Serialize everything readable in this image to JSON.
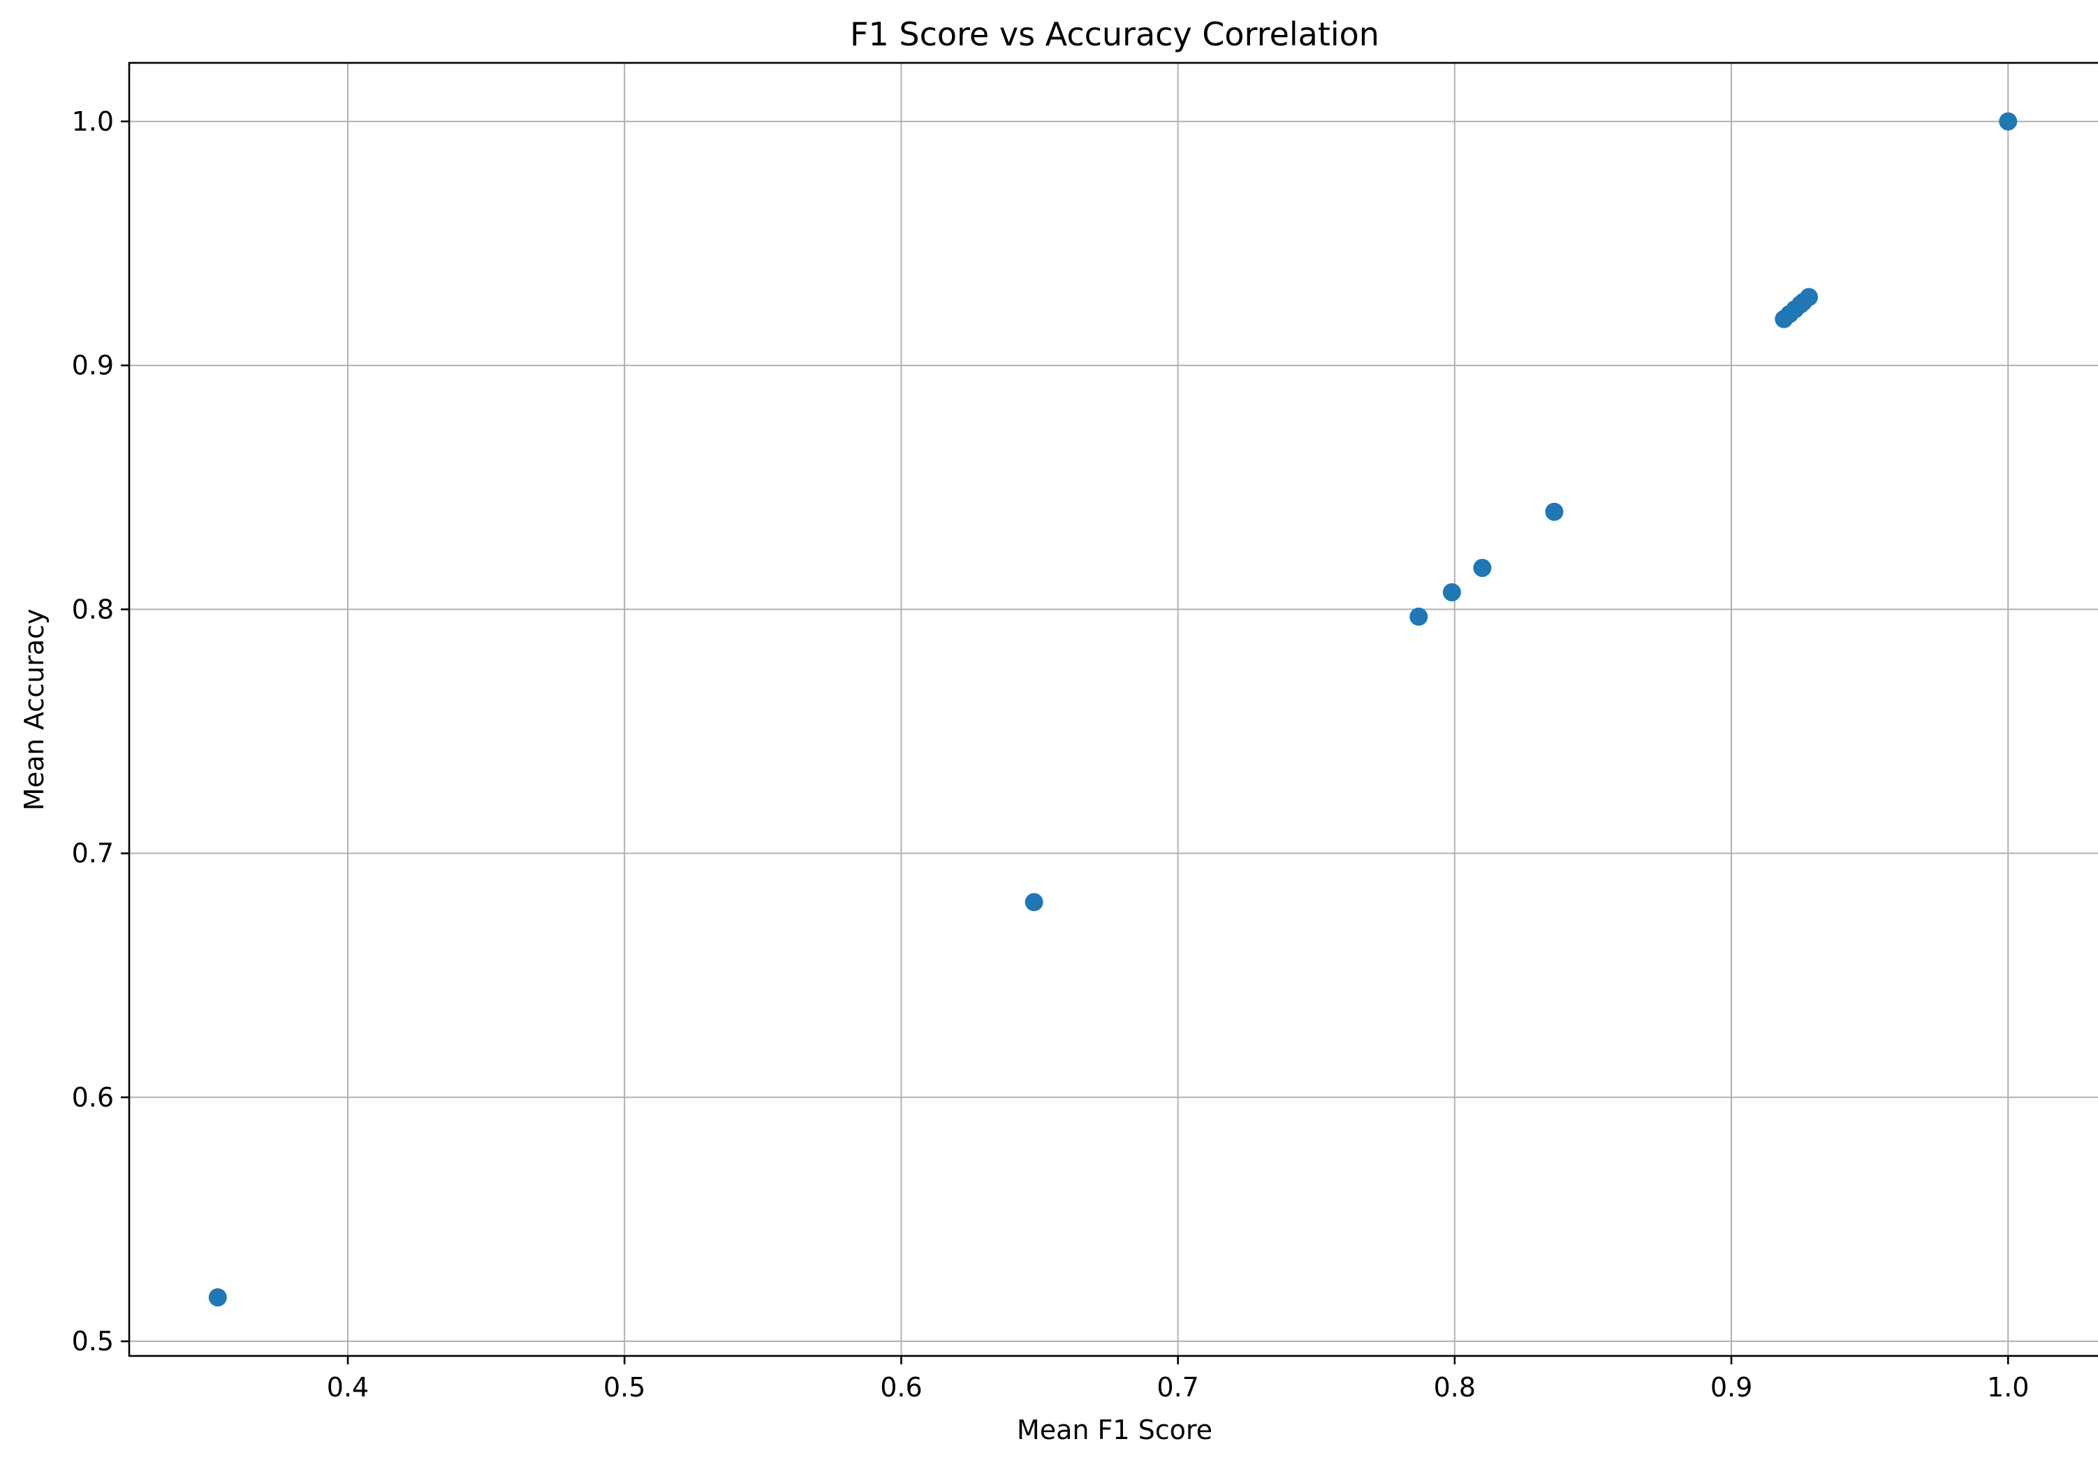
{
  "chart_data": {
    "type": "scatter",
    "title": "F1 Score vs Accuracy Correlation",
    "xlabel": "Mean F1 Score",
    "ylabel": "Mean Accuracy",
    "xlim": [
      0.321,
      1.033
    ],
    "ylim": [
      0.494,
      1.024
    ],
    "xticks": [
      0.4,
      0.5,
      0.6,
      0.7,
      0.8,
      0.9,
      1.0
    ],
    "xtick_labels": [
      "0.4",
      "0.5",
      "0.6",
      "0.7",
      "0.8",
      "0.9",
      "1.0"
    ],
    "yticks": [
      0.5,
      0.6,
      0.7,
      0.8,
      0.9,
      1.0
    ],
    "ytick_labels": [
      "0.5",
      "0.6",
      "0.7",
      "0.8",
      "0.9",
      "1.0"
    ],
    "grid": true,
    "marker_color": "#1f77b4",
    "points": [
      {
        "x": 0.353,
        "y": 0.518
      },
      {
        "x": 0.648,
        "y": 0.68
      },
      {
        "x": 0.787,
        "y": 0.797
      },
      {
        "x": 0.799,
        "y": 0.807
      },
      {
        "x": 0.81,
        "y": 0.817
      },
      {
        "x": 0.836,
        "y": 0.84
      },
      {
        "x": 0.919,
        "y": 0.919
      },
      {
        "x": 0.921,
        "y": 0.921
      },
      {
        "x": 0.923,
        "y": 0.923
      },
      {
        "x": 0.925,
        "y": 0.925
      },
      {
        "x": 0.926,
        "y": 0.926
      },
      {
        "x": 0.928,
        "y": 0.928
      },
      {
        "x": 1.0,
        "y": 1.0
      }
    ]
  }
}
